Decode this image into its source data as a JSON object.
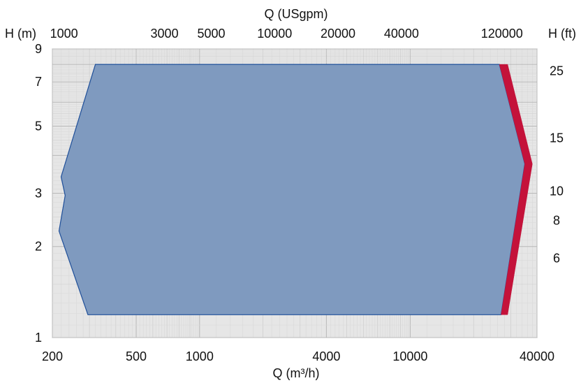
{
  "chart_data": {
    "type": "area",
    "x_axis_bottom": {
      "label": "Q (m³/h)",
      "scale": "log",
      "range": [
        200,
        40000
      ],
      "ticks": [
        200,
        500,
        1000,
        4000,
        10000,
        40000
      ],
      "tick_labels": [
        "200",
        "500",
        "1000",
        "4000",
        "10000",
        "40000"
      ]
    },
    "x_axis_top": {
      "label": "Q (USgpm)",
      "scale": "log",
      "ticks": [
        1000,
        3000,
        5000,
        10000,
        20000,
        40000,
        120000
      ],
      "tick_labels": [
        "1000",
        "3000",
        "5000",
        "10000",
        "20000",
        "40000",
        "120000"
      ]
    },
    "y_axis_left": {
      "label": "H (m)",
      "scale": "log",
      "range": [
        1,
        9
      ],
      "ticks": [
        1,
        2,
        3,
        5,
        7,
        9
      ],
      "tick_labels": [
        "1",
        "2",
        "3",
        "5",
        "7",
        "9"
      ]
    },
    "y_axis_right": {
      "label": "H (ft)",
      "scale": "log",
      "ticks": [
        6,
        8,
        10,
        15,
        25
      ],
      "tick_labels": [
        "6",
        "8",
        "10",
        "15",
        "25"
      ]
    },
    "grid": true,
    "series": [
      {
        "color": "#7f9abf",
        "edge_color": "#1f4f99",
        "points": [
          [
            320,
            8.0
          ],
          [
            26500,
            8.0
          ],
          [
            35000,
            3.75
          ],
          [
            27000,
            1.19
          ],
          [
            295,
            1.19
          ],
          [
            215,
            2.25
          ],
          [
            230,
            2.95
          ],
          [
            220,
            3.4
          ]
        ]
      },
      {
        "color": "#c4123a",
        "points": [
          [
            26500,
            8.0
          ],
          [
            29000,
            8.0
          ],
          [
            38000,
            3.75
          ],
          [
            29000,
            1.19
          ],
          [
            27000,
            1.19
          ],
          [
            35000,
            3.75
          ]
        ]
      }
    ]
  }
}
